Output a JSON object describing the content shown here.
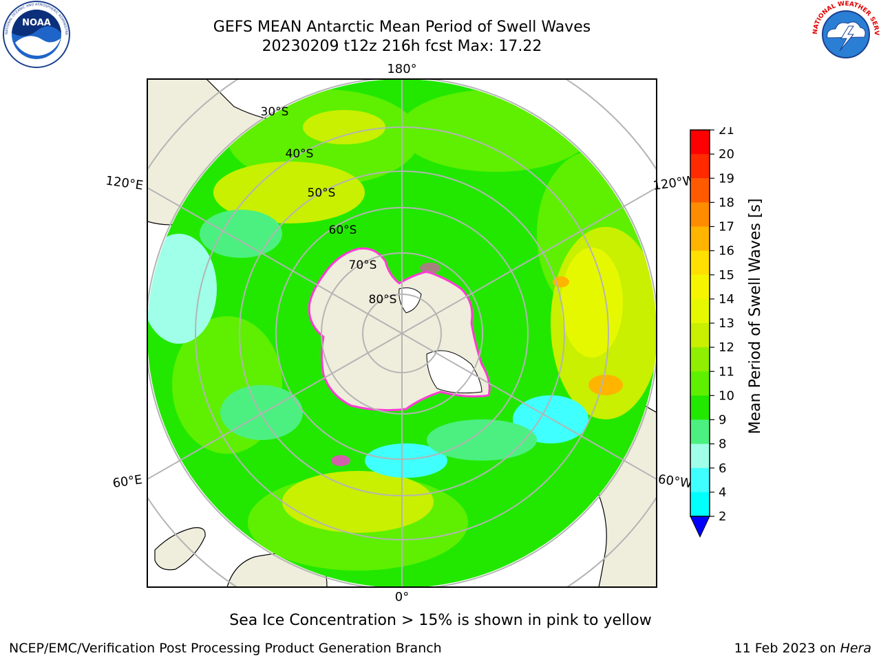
{
  "header": {
    "title_line1": "GEFS MEAN Antarctic Mean Period of Swell Waves",
    "title_line2": "20230209 t12z 216h fcst   Max: 17.22"
  },
  "logos": {
    "left": {
      "icon": "noaa-logo",
      "text": "NOAA",
      "ring_text": "NATIONAL OCEANIC AND ATMOSPHERIC ADMINISTRATION · U.S. DEPARTMENT OF COMMERCE"
    },
    "right": {
      "icon": "nws-logo",
      "ring_text": "NATIONAL WEATHER SERVICE"
    }
  },
  "map": {
    "projection": "south-polar-stereographic",
    "lon_labels": [
      "180°",
      "120°E",
      "120°W",
      "60°E",
      "60°W",
      "0°"
    ],
    "lat_labels": [
      "30°S",
      "40°S",
      "50°S",
      "60°S",
      "70°S",
      "80°S"
    ],
    "colors": {
      "land": "#efeddc",
      "ocean_main": "#22e800",
      "ocean_light": "#5ef000",
      "gridline": "#b4b4b4",
      "ice": "#ff3cd6"
    }
  },
  "colorbar": {
    "label": "Mean Period of Swell Waves [s]",
    "ticks": [
      "21",
      "20",
      "19",
      "18",
      "17",
      "16",
      "15",
      "14",
      "13",
      "12",
      "11",
      "10",
      "9",
      "8",
      "6",
      "4",
      "2"
    ],
    "colors": [
      "#ff0000",
      "#ff2a00",
      "#ff5a00",
      "#ff8c00",
      "#ffb400",
      "#ffe000",
      "#f5f500",
      "#e6f800",
      "#c8f000",
      "#90ee00",
      "#5ef000",
      "#22e800",
      "#4cf080",
      "#a0ffe8",
      "#40ffff",
      "#00ffff",
      "#00c0ff",
      "#0070ff"
    ],
    "extend_color": "#0000ff"
  },
  "captions": {
    "sea_ice": "Sea Ice Concentration > 15% is shown in pink to yellow",
    "footer_left": "NCEP/EMC/Verification Post Processing Product Generation Branch",
    "footer_right_text": "11 Feb 2023 on ",
    "footer_right_host": "Hera"
  }
}
